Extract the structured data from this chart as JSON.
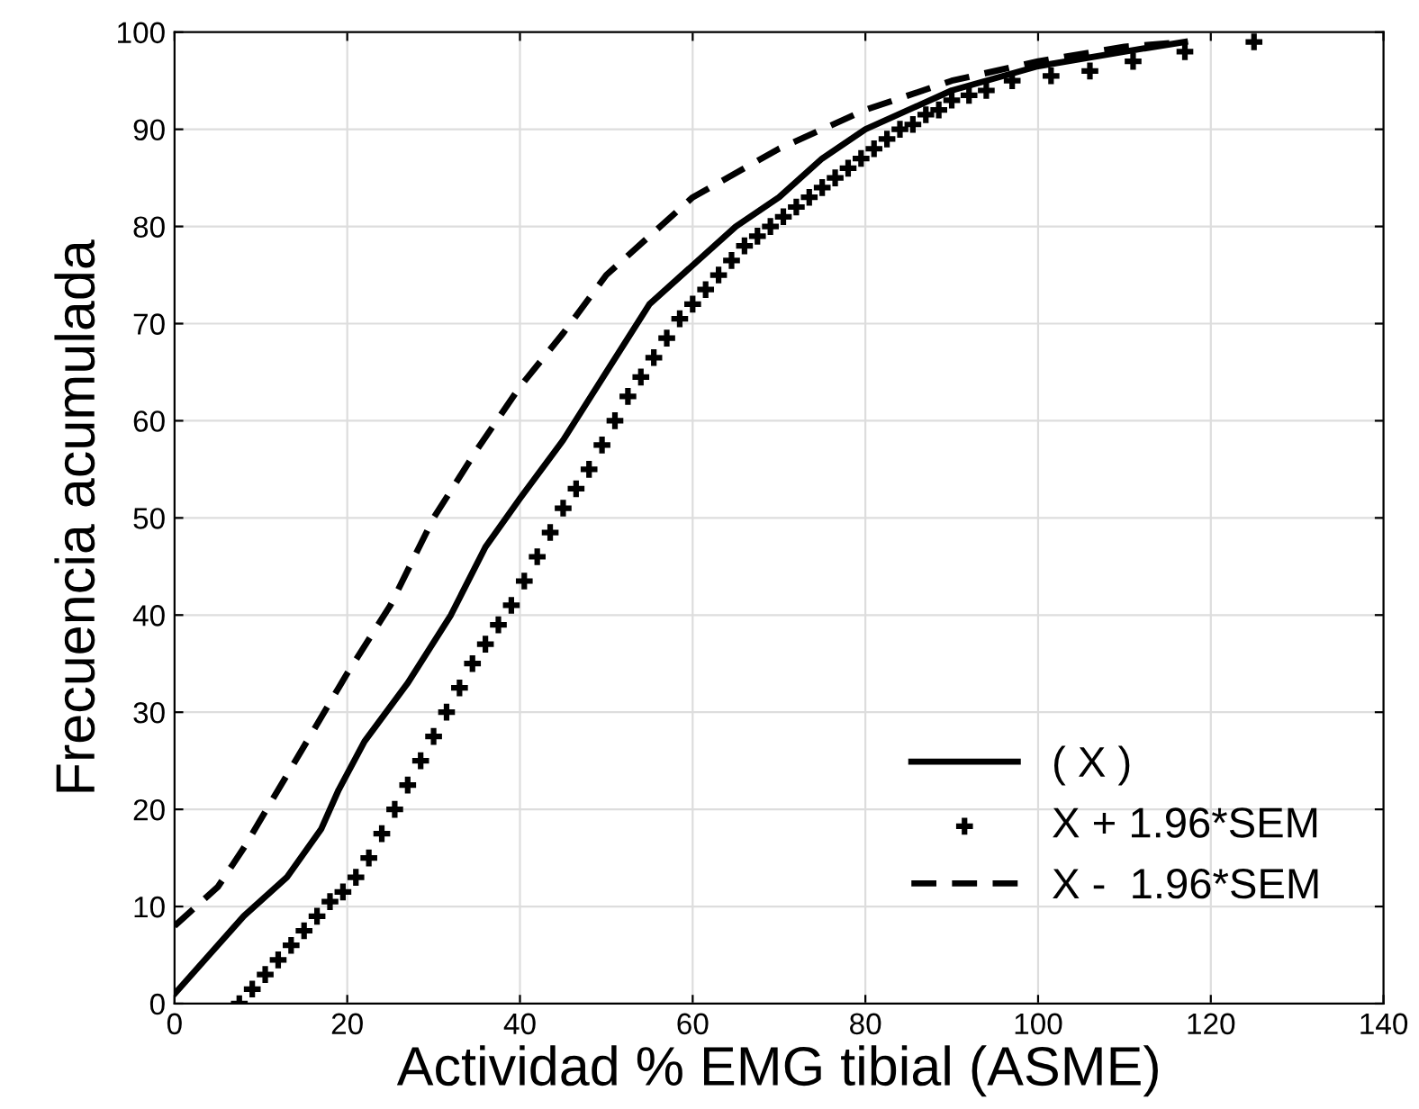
{
  "chart_data": {
    "type": "line",
    "xlabel": "Actividad % EMG tibial (ASME)",
    "ylabel": "Frecuencia acumulada",
    "xlim": [
      0,
      140
    ],
    "xticks": [
      0,
      20,
      40,
      60,
      80,
      100,
      120,
      140
    ],
    "ylim": [
      0,
      100
    ],
    "yticks": [
      0,
      10,
      20,
      30,
      40,
      50,
      60,
      70,
      80,
      90,
      100
    ],
    "grid": true,
    "legend": "bottom right",
    "series": [
      {
        "name": "( X )",
        "line_style": "solid",
        "color": "#000000",
        "x": [
          0,
          4,
          8,
          13,
          17,
          19,
          22,
          27,
          32,
          36,
          40,
          45,
          50,
          55,
          60,
          65,
          70,
          75,
          80,
          90,
          100,
          110,
          117
        ],
        "values": [
          1,
          5,
          9,
          13,
          18,
          22,
          27,
          33,
          40,
          47,
          52,
          58,
          65,
          72,
          76,
          80,
          83,
          87,
          90,
          94,
          96.5,
          98,
          99
        ]
      },
      {
        "name": "X + 1.96*SEM",
        "type": "scatter",
        "marker": "cross",
        "color": "#000000",
        "x": [
          7.5,
          9,
          10.5,
          12,
          13.5,
          15,
          16.5,
          18,
          19.5,
          21,
          22.5,
          24,
          25.5,
          27,
          28.5,
          30,
          31.5,
          33,
          34.5,
          36,
          37.5,
          39,
          40.5,
          42,
          43.5,
          45,
          46.5,
          48,
          49.5,
          51,
          52.5,
          54,
          55.5,
          57,
          58.5,
          60,
          61.5,
          63,
          64.5,
          66,
          67.5,
          69,
          70.5,
          72,
          73.5,
          75,
          76.5,
          78,
          79.5,
          81,
          82.5,
          84,
          85.5,
          87,
          88.5,
          90,
          92,
          94,
          97,
          101.5,
          106,
          111,
          117,
          125
        ],
        "values": [
          0,
          1.5,
          3,
          4.5,
          6,
          7.5,
          9,
          10.5,
          11.5,
          13,
          15,
          17.5,
          20,
          22.5,
          25,
          27.5,
          30,
          32.5,
          35,
          37,
          39,
          41,
          43.5,
          46,
          48.5,
          51,
          53,
          55,
          57.5,
          60,
          62.5,
          64.5,
          66.5,
          68.5,
          70.5,
          72,
          73.5,
          75,
          76.5,
          78,
          79,
          80,
          81,
          82,
          83,
          84,
          85,
          86,
          87,
          88,
          89,
          90,
          90.5,
          91.5,
          92,
          93,
          93.5,
          94,
          95,
          95.5,
          96,
          97,
          98,
          99
        ]
      },
      {
        "name": "X -  1.96*SEM",
        "line_style": "dashed",
        "color": "#000000",
        "x": [
          0,
          5,
          8,
          12,
          16,
          20,
          25,
          30,
          35,
          40,
          45,
          50,
          55,
          60,
          70,
          80,
          90,
          100,
          110,
          117
        ],
        "values": [
          8,
          12,
          16,
          22,
          28,
          34,
          41,
          50,
          57,
          63.5,
          69,
          75,
          79,
          83,
          88,
          92,
          95,
          97,
          98.5,
          99
        ]
      }
    ]
  }
}
